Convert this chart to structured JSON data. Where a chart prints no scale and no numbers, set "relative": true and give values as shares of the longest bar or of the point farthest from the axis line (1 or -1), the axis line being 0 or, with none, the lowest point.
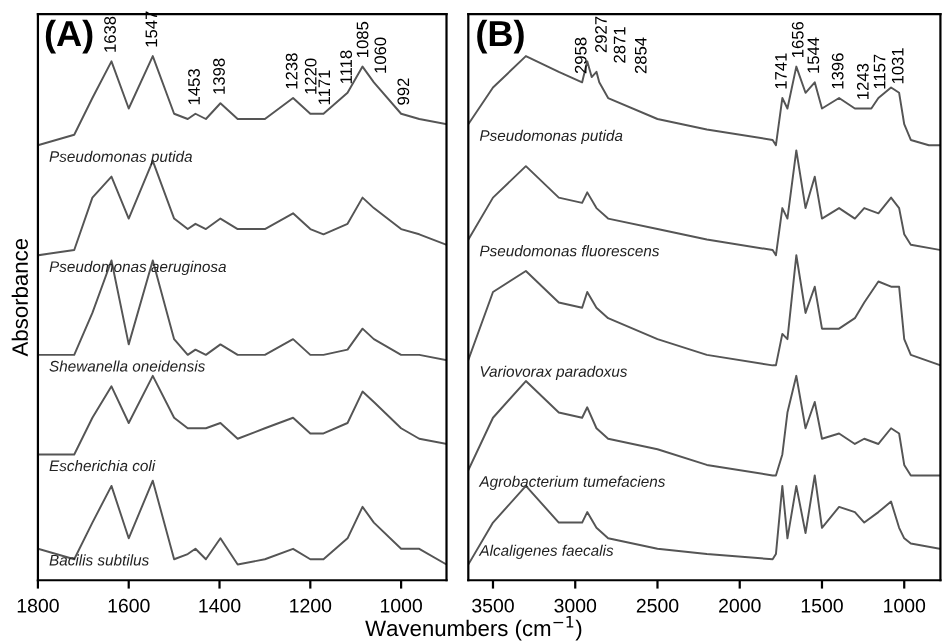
{
  "chart_data": [
    {
      "type": "line",
      "title": "(A)",
      "ylabel": "Absorbance",
      "xlabel": "Wavenumbers (cm$^{−1}$)",
      "relative": true,
      "tick_labels": "x",
      "grid": false,
      "legend": false,
      "marker": "none",
      "line_style": "solid",
      "xlim": [
        1800,
        900
      ],
      "xticks": [
        1800,
        1600,
        1400,
        1200,
        1000
      ],
      "x": [
        1800,
        1720,
        1680,
        1638,
        1600,
        1547,
        1500,
        1470,
        1453,
        1430,
        1398,
        1360,
        1300,
        1238,
        1200,
        1171,
        1118,
        1085,
        1060,
        1000,
        960,
        900
      ],
      "series": [
        {
          "name": "Pseudomonas putida",
          "color": "#555555",
          "values": [
            0.83,
            0.85,
            0.92,
            0.99,
            0.9,
            1.0,
            0.89,
            0.88,
            0.89,
            0.88,
            0.91,
            0.88,
            0.88,
            0.92,
            0.89,
            0.89,
            0.93,
            0.98,
            0.95,
            0.89,
            0.88,
            0.87
          ]
        },
        {
          "name": "Pseudomonas aeruginosa",
          "color": "#555555",
          "values": [
            0.62,
            0.63,
            0.73,
            0.77,
            0.69,
            0.8,
            0.69,
            0.67,
            0.68,
            0.67,
            0.69,
            0.67,
            0.67,
            0.7,
            0.67,
            0.66,
            0.68,
            0.73,
            0.71,
            0.67,
            0.66,
            0.64
          ]
        },
        {
          "name": "Shewanella oneidensis",
          "color": "#555555",
          "values": [
            0.43,
            0.43,
            0.51,
            0.61,
            0.45,
            0.61,
            0.46,
            0.43,
            0.44,
            0.43,
            0.45,
            0.43,
            0.43,
            0.46,
            0.43,
            0.43,
            0.44,
            0.48,
            0.46,
            0.43,
            0.43,
            0.42
          ]
        },
        {
          "name": "Escherichia coli",
          "color": "#555555",
          "values": [
            0.24,
            0.24,
            0.31,
            0.37,
            0.3,
            0.39,
            0.31,
            0.29,
            0.29,
            0.29,
            0.3,
            0.27,
            0.29,
            0.31,
            0.28,
            0.28,
            0.3,
            0.36,
            0.34,
            0.29,
            0.27,
            0.26
          ]
        },
        {
          "name": "Bacilis subtilus",
          "color": "#555555",
          "values": [
            0.06,
            0.04,
            0.11,
            0.18,
            0.08,
            0.19,
            0.04,
            0.05,
            0.06,
            0.04,
            0.08,
            0.03,
            0.04,
            0.06,
            0.04,
            0.04,
            0.08,
            0.14,
            0.11,
            0.06,
            0.06,
            0.03
          ]
        }
      ],
      "annotations": [
        {
          "text": "1638",
          "x": 1638,
          "y": 0.99
        },
        {
          "text": "1547",
          "x": 1547,
          "y": 1.0
        },
        {
          "text": "1453",
          "x": 1453,
          "y": 0.89
        },
        {
          "text": "1398",
          "x": 1398,
          "y": 0.91
        },
        {
          "text": "1238",
          "x": 1238,
          "y": 0.92
        },
        {
          "text": "1220",
          "x": 1220,
          "y": 0.91
        },
        {
          "text": "1171",
          "x": 1171,
          "y": 0.89
        },
        {
          "text": "1118",
          "x": 1118,
          "y": 0.93
        },
        {
          "text": "1085",
          "x": 1085,
          "y": 0.98
        },
        {
          "text": "1060",
          "x": 1060,
          "y": 0.95
        },
        {
          "text": "992",
          "x": 992,
          "y": 0.89
        }
      ]
    },
    {
      "type": "line",
      "title": "(B)",
      "relative": true,
      "tick_labels": "x",
      "grid": false,
      "legend": false,
      "marker": "none",
      "line_style": "solid",
      "xlim": [
        3650,
        780
      ],
      "xticks": [
        3500,
        3000,
        2500,
        2000,
        1500,
        1000
      ],
      "x": [
        3650,
        3500,
        3300,
        3100,
        2958,
        2927,
        2871,
        2800,
        2500,
        2200,
        1800,
        1780,
        1741,
        1710,
        1656,
        1600,
        1544,
        1500,
        1396,
        1300,
        1243,
        1157,
        1080,
        1031,
        1000,
        960,
        780
      ],
      "series": [
        {
          "name": "Pseudomonas putida",
          "color": "#555555",
          "x": [
            3650,
            3500,
            3300,
            3100,
            2958,
            2927,
            2900,
            2871,
            2854,
            2800,
            2500,
            2200,
            1800,
            1780,
            1741,
            1710,
            1656,
            1600,
            1544,
            1500,
            1396,
            1300,
            1243,
            1200,
            1157,
            1080,
            1031,
            1000,
            960,
            850,
            780
          ],
          "values": [
            0.87,
            0.94,
            1.0,
            0.97,
            0.95,
            0.99,
            0.96,
            0.97,
            0.95,
            0.92,
            0.88,
            0.86,
            0.84,
            0.83,
            0.92,
            0.9,
            0.98,
            0.93,
            0.95,
            0.9,
            0.92,
            0.9,
            0.9,
            0.9,
            0.92,
            0.94,
            0.93,
            0.87,
            0.84,
            0.83,
            0.83
          ]
        },
        {
          "name": "Pseudomonas fluorescens",
          "color": "#555555",
          "values": [
            0.65,
            0.73,
            0.79,
            0.73,
            0.72,
            0.74,
            0.71,
            0.69,
            0.67,
            0.65,
            0.63,
            0.62,
            0.71,
            0.69,
            0.82,
            0.71,
            0.77,
            0.69,
            0.71,
            0.69,
            0.71,
            0.7,
            0.73,
            0.71,
            0.66,
            0.64,
            0.63
          ]
        },
        {
          "name": "Variovorax paradoxus",
          "color": "#555555",
          "values": [
            0.42,
            0.55,
            0.59,
            0.53,
            0.52,
            0.55,
            0.52,
            0.5,
            0.46,
            0.43,
            0.41,
            0.41,
            0.47,
            0.46,
            0.62,
            0.51,
            0.56,
            0.48,
            0.48,
            0.5,
            0.53,
            0.57,
            0.56,
            0.56,
            0.46,
            0.43,
            0.41
          ]
        },
        {
          "name": "Agrobacterium tumefaciens",
          "color": "#555555",
          "values": [
            0.21,
            0.31,
            0.38,
            0.32,
            0.31,
            0.33,
            0.29,
            0.27,
            0.25,
            0.22,
            0.2,
            0.2,
            0.24,
            0.32,
            0.39,
            0.29,
            0.34,
            0.27,
            0.28,
            0.26,
            0.27,
            0.26,
            0.29,
            0.28,
            0.22,
            0.2,
            0.2
          ]
        },
        {
          "name": "Alcaligenes faecalis",
          "color": "#555555",
          "values": [
            0.03,
            0.11,
            0.18,
            0.11,
            0.11,
            0.13,
            0.1,
            0.08,
            0.06,
            0.05,
            0.04,
            0.05,
            0.18,
            0.08,
            0.18,
            0.09,
            0.2,
            0.1,
            0.14,
            0.13,
            0.11,
            0.13,
            0.15,
            0.1,
            0.08,
            0.07,
            0.06
          ]
        }
      ],
      "annotations": [
        {
          "text": "2958",
          "x": 2958,
          "y": 0.95
        },
        {
          "text": "2927",
          "x": 2927,
          "y": 0.99
        },
        {
          "text": "2871",
          "x": 2871,
          "y": 0.97
        },
        {
          "text": "2854",
          "x": 2854,
          "y": 0.95
        },
        {
          "text": "1741",
          "x": 1741,
          "y": 0.92
        },
        {
          "text": "1656",
          "x": 1656,
          "y": 0.98
        },
        {
          "text": "1544",
          "x": 1544,
          "y": 0.95
        },
        {
          "text": "1396",
          "x": 1396,
          "y": 0.92
        },
        {
          "text": "1243",
          "x": 1243,
          "y": 0.9
        },
        {
          "text": "1157",
          "x": 1157,
          "y": 0.92
        },
        {
          "text": "1031",
          "x": 1031,
          "y": 0.93
        }
      ]
    }
  ]
}
